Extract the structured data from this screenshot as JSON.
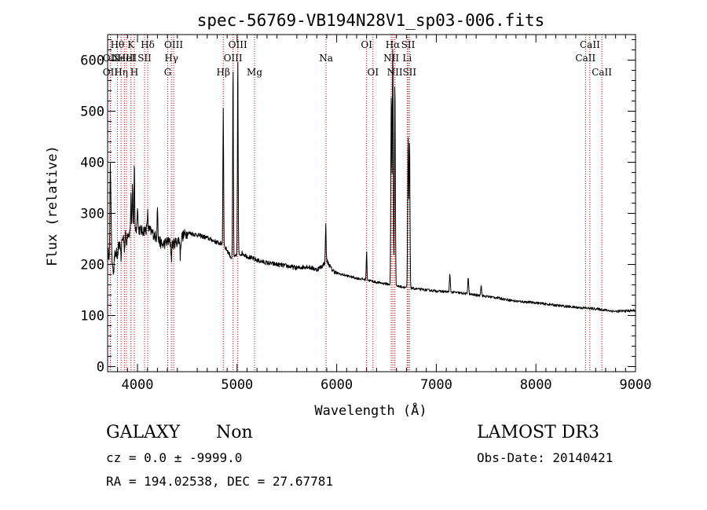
{
  "chart_data": {
    "type": "line",
    "title": "spec-56769-VB194N28V1_sp03-006.fits",
    "xlabel": "Wavelength (Å)",
    "ylabel": "Flux (relative)",
    "xlim": [
      3700,
      9000
    ],
    "ylim": [
      -10,
      650
    ],
    "x_ticks": [
      4000,
      5000,
      6000,
      7000,
      8000,
      9000
    ],
    "y_ticks": [
      0,
      100,
      200,
      300,
      400,
      500,
      600
    ],
    "grid": false,
    "series": [
      {
        "color": "#000000",
        "continuum": [
          [
            3700,
            225
          ],
          [
            3750,
            205
          ],
          [
            3790,
            225
          ],
          [
            3820,
            240
          ],
          [
            3850,
            250
          ],
          [
            3880,
            258
          ],
          [
            3920,
            262
          ],
          [
            3960,
            268
          ],
          [
            4000,
            270
          ],
          [
            4050,
            265
          ],
          [
            4100,
            270
          ],
          [
            4150,
            262
          ],
          [
            4200,
            250
          ],
          [
            4250,
            238
          ],
          [
            4300,
            245
          ],
          [
            4350,
            240
          ],
          [
            4400,
            245
          ],
          [
            4450,
            255
          ],
          [
            4500,
            262
          ],
          [
            4600,
            258
          ],
          [
            4700,
            252
          ],
          [
            4800,
            243
          ],
          [
            4850,
            240
          ],
          [
            4900,
            228
          ],
          [
            4950,
            210
          ],
          [
            5000,
            218
          ],
          [
            5050,
            222
          ],
          [
            5100,
            216
          ],
          [
            5200,
            208
          ],
          [
            5300,
            203
          ],
          [
            5400,
            200
          ],
          [
            5500,
            197
          ],
          [
            5600,
            193
          ],
          [
            5700,
            196
          ],
          [
            5800,
            190
          ],
          [
            5850,
            196
          ],
          [
            5900,
            208
          ],
          [
            5950,
            190
          ],
          [
            6000,
            183
          ],
          [
            6100,
            178
          ],
          [
            6200,
            173
          ],
          [
            6300,
            170
          ],
          [
            6400,
            165
          ],
          [
            6500,
            162
          ],
          [
            6600,
            158
          ],
          [
            6700,
            155
          ],
          [
            6800,
            152
          ],
          [
            7000,
            148
          ],
          [
            7200,
            145
          ],
          [
            7400,
            140
          ],
          [
            7600,
            135
          ],
          [
            7800,
            128
          ],
          [
            8000,
            125
          ],
          [
            8200,
            120
          ],
          [
            8400,
            116
          ],
          [
            8600,
            113
          ],
          [
            8800,
            108
          ],
          [
            9000,
            110
          ]
        ],
        "features": [
          [
            3727,
            380
          ],
          [
            3734,
            300
          ],
          [
            3760,
            180
          ],
          [
            3798,
            200
          ],
          [
            3835,
            210
          ],
          [
            3870,
            230
          ],
          [
            3889,
            240
          ],
          [
            3934,
            330
          ],
          [
            3950,
            350
          ],
          [
            3968,
            400
          ],
          [
            4000,
            320
          ],
          [
            4102,
            300
          ],
          [
            4200,
            320
          ],
          [
            4340,
            210
          ],
          [
            4363,
            240
          ],
          [
            4430,
            215
          ],
          [
            4861,
            505
          ],
          [
            4959,
            590
          ],
          [
            5007,
            610
          ],
          [
            5890,
            278
          ],
          [
            6300,
            225
          ],
          [
            6548,
            535
          ],
          [
            6563,
            630
          ],
          [
            6584,
            560
          ],
          [
            6717,
            450
          ],
          [
            6731,
            440
          ],
          [
            7136,
            180
          ],
          [
            7320,
            175
          ],
          [
            7450,
            160
          ]
        ]
      }
    ],
    "annotations": [
      {
        "x": 3727,
        "label": "OII",
        "row": 1
      },
      {
        "x": 3727,
        "label": "OII",
        "row": 2
      },
      {
        "x": 3798,
        "label": "Hθ",
        "row": 0
      },
      {
        "x": 3835,
        "label": "Hη",
        "row": 2
      },
      {
        "x": 3868,
        "label": "NeIII",
        "row": 1
      },
      {
        "x": 3889,
        "label": "HeI",
        "row": 1
      },
      {
        "x": 3934,
        "label": "K",
        "row": 0
      },
      {
        "x": 3968,
        "label": "H",
        "row": 2
      },
      {
        "x": 4071,
        "label": "SII",
        "row": 1
      },
      {
        "x": 4102,
        "label": "Hδ",
        "row": 0
      },
      {
        "x": 4304,
        "label": "G",
        "row": 2
      },
      {
        "x": 4340,
        "label": "Hγ",
        "row": 1
      },
      {
        "x": 4363,
        "label": "OIII",
        "row": 0
      },
      {
        "x": 4861,
        "label": "Hβ",
        "row": 2
      },
      {
        "x": 4959,
        "label": "OIII",
        "row": 1
      },
      {
        "x": 5007,
        "label": "OIII",
        "row": 0
      },
      {
        "x": 5175,
        "label": "Mg",
        "row": 2
      },
      {
        "x": 5893,
        "label": "Na",
        "row": 1
      },
      {
        "x": 6300,
        "label": "OI",
        "row": 0
      },
      {
        "x": 6364,
        "label": "OI",
        "row": 2
      },
      {
        "x": 6548,
        "label": "NII",
        "row": 1
      },
      {
        "x": 6563,
        "label": "Hα",
        "row": 0
      },
      {
        "x": 6584,
        "label": "NII",
        "row": 2
      },
      {
        "x": 6707,
        "label": "Li",
        "row": 1
      },
      {
        "x": 6717,
        "label": "SII",
        "row": 0
      },
      {
        "x": 6731,
        "label": "SII",
        "row": 2
      },
      {
        "x": 8498,
        "label": "CaII",
        "row": 1
      },
      {
        "x": 8542,
        "label": "CaII",
        "row": 0
      },
      {
        "x": 8662,
        "label": "CaII",
        "row": 2
      }
    ]
  },
  "footer": {
    "class_label": "GALAXY",
    "subclass_label": "Non",
    "survey_label": "LAMOST DR3",
    "cz_label": "cz = 0.0 ± -9999.0",
    "obs_date_label": "Obs-Date: 20140421",
    "coords_label": "RA = 194.02538, DEC =  27.67781"
  }
}
